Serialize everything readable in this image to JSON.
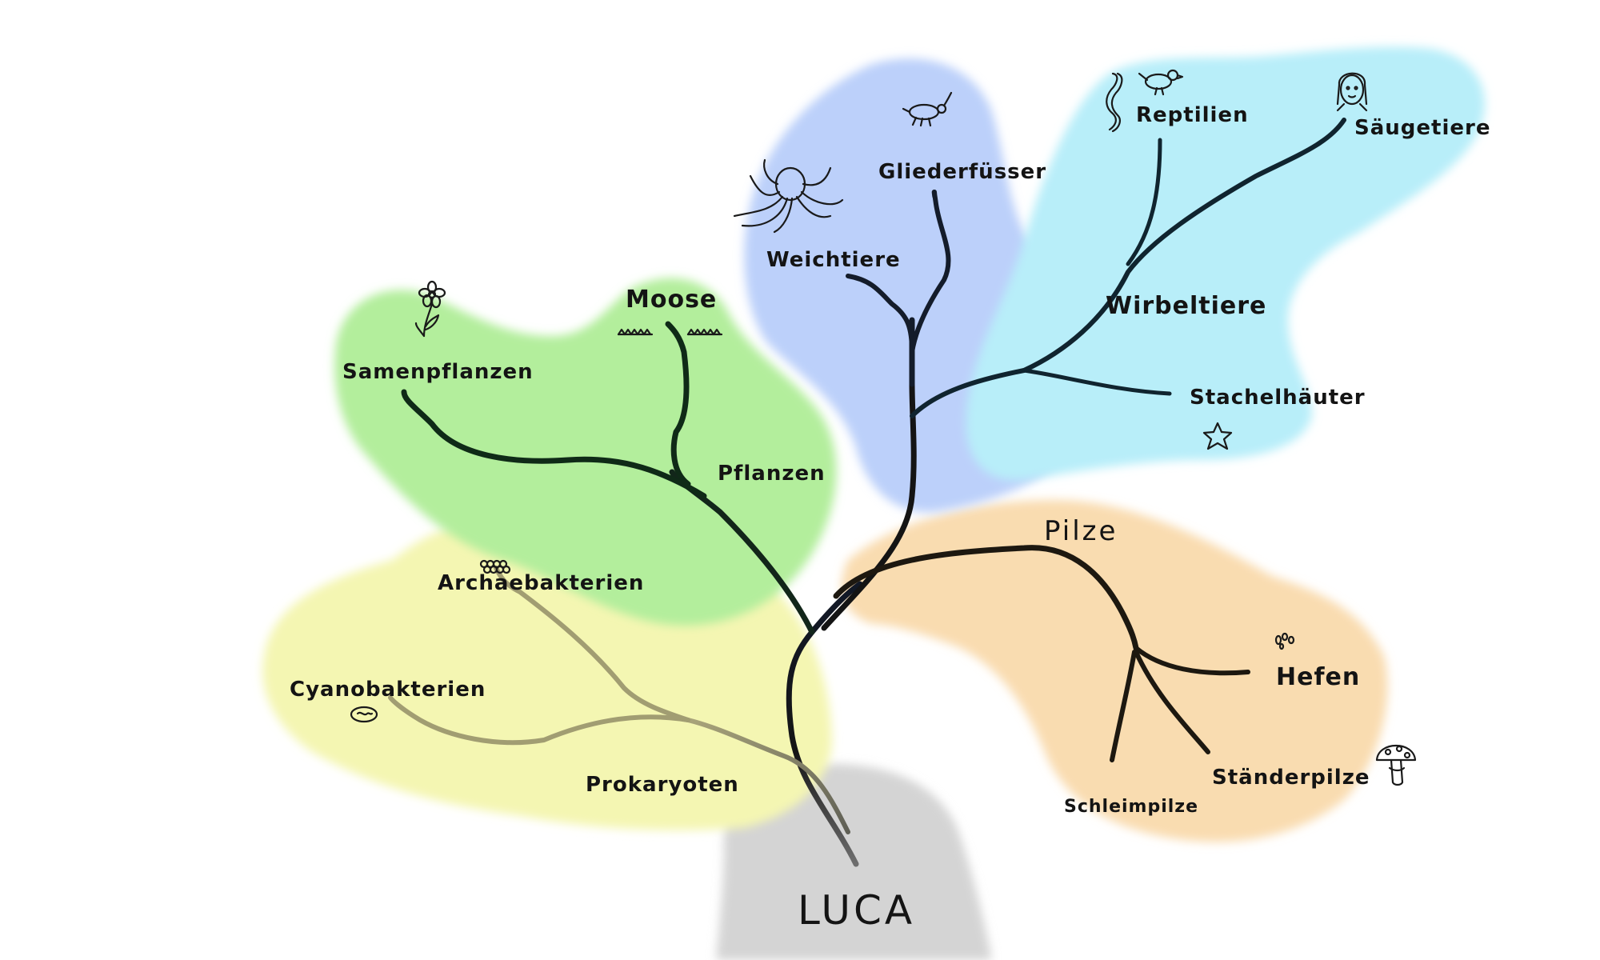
{
  "root": "LUCA",
  "prokaryotes": {
    "label": "Prokaryoten",
    "archaea": "Archaebakterien",
    "cyano": "Cyanobakterien"
  },
  "plants": {
    "label": "Pflanzen",
    "seed": "Samenpflanzen",
    "moss": "Moose"
  },
  "fungi": {
    "label": "Pilze",
    "yeast": "Hefen",
    "basidio": "Ständerpilze",
    "slime": "Schleimpilze"
  },
  "animals": {
    "mollusks": "Weichtiere",
    "arthropods": "Gliederfüsser",
    "vertebrates": {
      "label": "Wirbeltiere",
      "reptiles": "Reptilien",
      "mammals": "Säugetiere"
    },
    "echinoderms": "Stachelhäuter"
  },
  "icons": [
    "flower-icon",
    "grass-icon",
    "octopus-icon",
    "beetle-icon",
    "snake-icon",
    "bird-icon",
    "human-face-icon",
    "starfish-icon",
    "cell-cluster-icon",
    "cyanobacterium-icon",
    "yeast-cells-icon",
    "mushroom-icon"
  ],
  "colors": {
    "root_blob": "#cfcfcf",
    "prokaryote_blob": "#f3f5a6",
    "plant_blob": "#a9eb90",
    "fungi_blob": "#f8d6a8",
    "animal_blob_blue": "#b7cdf8",
    "animal_blob_cyan": "#b4edf8",
    "branch_dark": "#141414",
    "branch_green": "#10331a",
    "branch_blue": "#0d2536",
    "branch_olive": "#8c8a5c"
  }
}
